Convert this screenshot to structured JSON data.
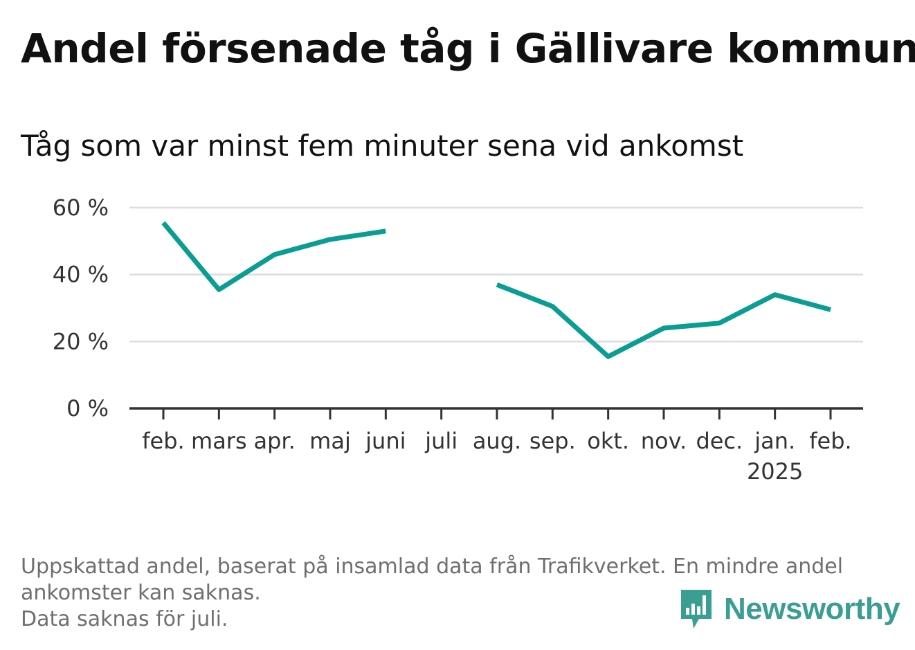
{
  "title": "Andel försenade tåg i Gällivare kommun",
  "subtitle": "Tåg som var minst fem minuter sena vid ankomst",
  "footer": {
    "line1": "Uppskattad andel, baserat på insamlad data från Trafikverket. En mindre andel",
    "line2": "ankomster kan saknas.",
    "line3": "Data saknas för juli."
  },
  "brand": {
    "name": "Newsworthy",
    "icon": "newsworthy-logo-icon",
    "color": "#3a9e93"
  },
  "chart_data": {
    "type": "line",
    "categories": [
      "feb.",
      "mars",
      "apr.",
      "maj",
      "juni",
      "juli",
      "aug.",
      "sep.",
      "okt.",
      "nov.",
      "dec.",
      "jan.",
      "feb."
    ],
    "year_label": {
      "category_index": 11,
      "text": "2025"
    },
    "series": [
      {
        "values": [
          55.5,
          35.5,
          46,
          50.5,
          53,
          null,
          37,
          30.5,
          15.5,
          24,
          25.5,
          34,
          29.5
        ],
        "color": "#0a9d94"
      }
    ],
    "y_ticks": [
      {
        "value": 0,
        "label": "0 %"
      },
      {
        "value": 20,
        "label": "20 %"
      },
      {
        "value": 40,
        "label": "40 %"
      },
      {
        "value": 60,
        "label": "60 %"
      }
    ],
    "ylim": [
      0,
      60
    ],
    "grid": true,
    "legend": "none",
    "xlabel": "",
    "ylabel": ""
  }
}
